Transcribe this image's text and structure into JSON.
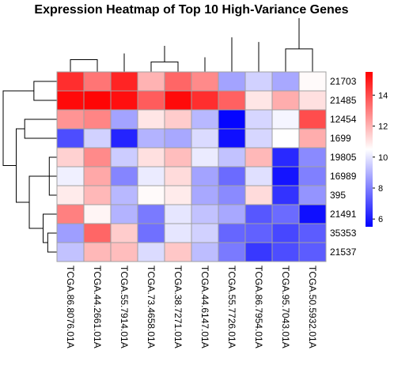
{
  "chart_data": {
    "type": "heatmap",
    "title": "Expression Heatmap of Top 10 High-Variance Genes",
    "rows": [
      "21703",
      "21485",
      "12454",
      "1699",
      "19805",
      "16989",
      "395",
      "21491",
      "35353",
      "21537"
    ],
    "columns": [
      "TCGA.86.8076.01A",
      "TCGA.44.2661.01A",
      "TCGA.55.7914.01A",
      "TCGA.73.4658.01A",
      "TCGA.38.7271.01A",
      "TCGA.44.6147.01A",
      "TCGA.55.7726.01A",
      "TCGA.86.7954.01A",
      "TCGA.95.7043.01A",
      "TCGA.50.5932.01A"
    ],
    "values": [
      [
        14.6,
        13.2,
        14.8,
        12.0,
        13.5,
        12.8,
        8.7,
        9.6,
        8.8,
        10.6
      ],
      [
        15.3,
        15.4,
        15.2,
        13.7,
        15.3,
        14.6,
        13.6,
        11.0,
        12.1,
        11.1
      ],
      [
        12.6,
        12.9,
        8.7,
        11.0,
        11.5,
        9.1,
        5.6,
        9.7,
        10.3,
        14.0
      ],
      [
        7.0,
        9.6,
        6.2,
        9.0,
        8.8,
        9.8,
        5.8,
        9.7,
        10.5,
        12.1
      ],
      [
        11.4,
        12.8,
        9.5,
        11.1,
        11.8,
        10.1,
        9.3,
        11.9,
        6.3,
        8.2
      ],
      [
        10.2,
        12.2,
        8.1,
        10.1,
        11.2,
        8.7,
        7.6,
        9.9,
        5.9,
        8.0
      ],
      [
        10.9,
        11.9,
        9.1,
        10.6,
        10.9,
        8.8,
        8.2,
        11.2,
        6.5,
        8.4
      ],
      [
        13.0,
        10.7,
        9.0,
        7.9,
        10.0,
        9.3,
        8.8,
        7.2,
        7.6,
        5.8
      ],
      [
        8.6,
        13.5,
        11.5,
        7.7,
        10.0,
        9.6,
        7.5,
        7.4,
        6.9,
        7.3
      ],
      [
        9.3,
        11.9,
        11.8,
        9.8,
        11.6,
        9.2,
        7.9,
        6.6,
        7.0,
        7.3
      ]
    ],
    "color_scale": {
      "low": "#0000ff",
      "mid": "#ffffff",
      "high": "#ff0000",
      "min": 5.5,
      "mid_value": 10.5,
      "max": 15.5
    },
    "colorbar_ticks": [
      6,
      8,
      10,
      12,
      14
    ],
    "row_dendrogram": [
      [
        0,
        1,
        3.0
      ],
      [
        2,
        3,
        4.2
      ],
      [
        4,
        6,
        1.0
      ],
      [
        5,
        12,
        1.4
      ],
      [
        8,
        9,
        1.2
      ],
      [
        7,
        14,
        1.8
      ],
      [
        13,
        15,
        3.6
      ],
      [
        11,
        16,
        5.3
      ],
      [
        10,
        17,
        7.0
      ]
    ],
    "col_dendrogram": [
      [
        0,
        1,
        1.6
      ],
      [
        2,
        11,
        2.4
      ],
      [
        3,
        4,
        1.3
      ],
      [
        5,
        13,
        1.9
      ],
      [
        12,
        14,
        3.4
      ],
      [
        8,
        9,
        3.0
      ],
      [
        7,
        16,
        3.9
      ],
      [
        6,
        17,
        4.5
      ],
      [
        15,
        18,
        7.0
      ]
    ],
    "legend_position": "right"
  }
}
